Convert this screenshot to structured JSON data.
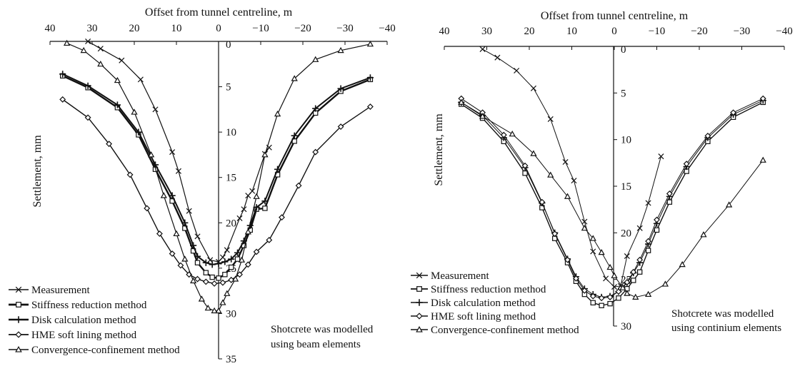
{
  "chart_data": [
    {
      "type": "line",
      "xlabel": "Offset from tunnel centreline, m",
      "ylabel": "Settlement, mm",
      "xlim": [
        40,
        -40
      ],
      "ylim": [
        0,
        35
      ],
      "x_ticks": [
        "40",
        "30",
        "20",
        "10",
        "0",
        "−10",
        "−20",
        "−30",
        "−40"
      ],
      "y_ticks": [
        "0",
        "5",
        "10",
        "15",
        "20",
        "25",
        "30",
        "35"
      ],
      "annotation": [
        "Shotcrete was modelled",
        "using beam elements"
      ],
      "legend_position": "bottom-left",
      "series": [
        {
          "name": "Measurement",
          "marker": "x",
          "x": [
            31,
            28,
            23,
            18.5,
            15,
            11,
            9.5,
            7,
            5,
            2,
            0,
            -1,
            -2,
            -5,
            -6,
            -7,
            -8,
            -11,
            -12
          ],
          "y": [
            0.0,
            0.8,
            2.1,
            4.2,
            7.5,
            12.2,
            14.3,
            18.7,
            21.5,
            24.1,
            24.3,
            23.8,
            23.0,
            19.5,
            18.5,
            17.0,
            16.5,
            12.4,
            11.7
          ]
        },
        {
          "name": "Stiffness reduction method",
          "marker": "square",
          "x": [
            37,
            31,
            24,
            19,
            15,
            11,
            8,
            6,
            5,
            3,
            1.5,
            0,
            -1.5,
            -3,
            -4.5,
            -6,
            -7.5,
            -9,
            -11,
            -14,
            -18,
            -23,
            -29,
            -36
          ],
          "y": [
            3.8,
            5.1,
            7.3,
            10.3,
            14.1,
            17.6,
            20.6,
            23.1,
            24.4,
            25.5,
            26.0,
            26.1,
            25.7,
            24.9,
            24.0,
            22.5,
            20.8,
            18.5,
            18.4,
            14.7,
            11.0,
            7.9,
            5.5,
            4.2
          ]
        },
        {
          "name": "Disk calculation method",
          "marker": "plus",
          "x": [
            37,
            31,
            24,
            19,
            15,
            11,
            8,
            6,
            5,
            3,
            1.5,
            0,
            -1.5,
            -3,
            -4.5,
            -6,
            -7.5,
            -9,
            -11,
            -14,
            -18,
            -23,
            -29,
            -36
          ],
          "y": [
            3.6,
            4.9,
            7.0,
            10.0,
            13.6,
            17.0,
            20.0,
            22.5,
            23.7,
            24.4,
            24.6,
            24.5,
            24.3,
            24.0,
            23.3,
            22.0,
            20.3,
            18.3,
            17.6,
            14.1,
            10.4,
            7.4,
            5.2,
            4.0
          ]
        },
        {
          "name": "HME soft lining method",
          "marker": "diamond",
          "x": [
            37,
            31,
            26,
            21,
            17,
            14,
            11,
            9,
            7,
            5,
            3,
            1,
            -1,
            -3,
            -5,
            -7,
            -9,
            -12,
            -15,
            -19,
            -23,
            -29,
            -36
          ],
          "y": [
            6.4,
            8.4,
            11.3,
            14.7,
            18.4,
            21.2,
            23.4,
            24.7,
            25.7,
            26.2,
            26.5,
            26.7,
            26.6,
            26.3,
            25.7,
            24.6,
            23.2,
            21.9,
            19.4,
            15.9,
            12.2,
            9.4,
            7.2
          ]
        },
        {
          "name": "Convergence-confinement method",
          "marker": "triangle",
          "x": [
            36,
            32,
            28,
            24,
            20,
            16,
            13,
            10,
            8,
            6,
            4,
            2.5,
            1,
            0,
            -1,
            -2,
            -4,
            -5.5,
            -7,
            -9,
            -11,
            -14,
            -18,
            -23,
            -29,
            -36
          ],
          "y": [
            0.2,
            1.0,
            2.5,
            4.3,
            7.8,
            12.5,
            17.0,
            21.2,
            24.0,
            26.4,
            28.4,
            29.4,
            29.7,
            29.7,
            28.8,
            27.8,
            26.2,
            24.1,
            21.0,
            17.1,
            12.5,
            8.0,
            4.1,
            2.0,
            1.0,
            0.3
          ]
        }
      ]
    },
    {
      "type": "line",
      "xlabel": "Offset from tunnel centreline, m",
      "ylabel": "Settlement, mm",
      "xlim": [
        40,
        -40
      ],
      "ylim": [
        0,
        30
      ],
      "x_ticks": [
        "40",
        "30",
        "20",
        "10",
        "0",
        "−10",
        "−20",
        "−30",
        "−40"
      ],
      "y_ticks": [
        "0",
        "5",
        "10",
        "15",
        "20",
        "25",
        "30"
      ],
      "annotation": [
        "Shotcrete was modelled",
        "using continium elements"
      ],
      "legend_position": "bottom-left",
      "series": [
        {
          "name": "Measurement",
          "marker": "x",
          "x": [
            31,
            27.5,
            23,
            19,
            15,
            11.5,
            9.5,
            7,
            5,
            2,
            0,
            -1.5,
            -3,
            -6,
            -8,
            -11
          ],
          "y": [
            0.3,
            1.2,
            2.6,
            4.5,
            7.8,
            12.4,
            14.4,
            18.8,
            22.0,
            24.9,
            25.8,
            25.7,
            22.5,
            19.5,
            16.8,
            11.8
          ]
        },
        {
          "name": "Stiffness reduction method",
          "marker": "square",
          "x": [
            36,
            31,
            26,
            21,
            17,
            14,
            11,
            9,
            7,
            5,
            3,
            1,
            -1,
            -3,
            -4.5,
            -6,
            -8,
            -10,
            -13,
            -17,
            -22,
            -28,
            -35
          ],
          "y": [
            6.2,
            7.7,
            10.2,
            13.6,
            17.3,
            20.6,
            23.2,
            25.2,
            26.6,
            27.5,
            27.8,
            27.6,
            27.0,
            26.0,
            25.1,
            24.2,
            21.9,
            19.7,
            16.7,
            13.4,
            10.2,
            7.6,
            6.0
          ]
        },
        {
          "name": "Disk calculation method",
          "marker": "plus",
          "x": [
            36,
            31,
            26,
            21,
            17,
            14,
            11,
            9,
            7,
            5,
            3,
            1,
            -1,
            -3,
            -4.5,
            -6,
            -8,
            -10,
            -13,
            -17,
            -22,
            -28,
            -35
          ],
          "y": [
            6.0,
            7.4,
            9.8,
            13.0,
            16.8,
            20.0,
            22.8,
            24.7,
            26.0,
            26.6,
            26.9,
            26.8,
            26.3,
            25.4,
            24.3,
            23.2,
            21.2,
            19.0,
            16.1,
            12.9,
            9.8,
            7.3,
            5.8
          ]
        },
        {
          "name": "HME soft lining method",
          "marker": "diamond",
          "x": [
            36,
            31,
            26,
            21,
            17,
            14,
            11,
            9,
            7,
            5,
            3,
            1,
            -1,
            -3,
            -4.5,
            -6,
            -8,
            -10,
            -13,
            -17,
            -22,
            -28,
            -35
          ],
          "y": [
            5.6,
            7.1,
            9.5,
            12.8,
            16.7,
            20.1,
            22.9,
            24.9,
            26.2,
            26.8,
            27.0,
            26.9,
            26.3,
            25.3,
            24.2,
            22.9,
            20.9,
            18.6,
            15.8,
            12.6,
            9.6,
            7.1,
            5.6
          ]
        },
        {
          "name": "Convergence-confinement method",
          "marker": "triangle",
          "x": [
            36,
            31,
            24,
            19,
            15,
            11,
            7,
            5,
            3,
            1,
            0,
            -2,
            -3,
            -5,
            -8,
            -12,
            -16,
            -21,
            -27,
            -35
          ],
          "y": [
            6.0,
            7.5,
            9.4,
            11.5,
            13.8,
            16.1,
            19.5,
            20.6,
            22.1,
            23.7,
            24.6,
            25.9,
            26.5,
            26.9,
            26.6,
            25.5,
            23.4,
            20.2,
            17.0,
            12.2
          ]
        }
      ]
    }
  ]
}
